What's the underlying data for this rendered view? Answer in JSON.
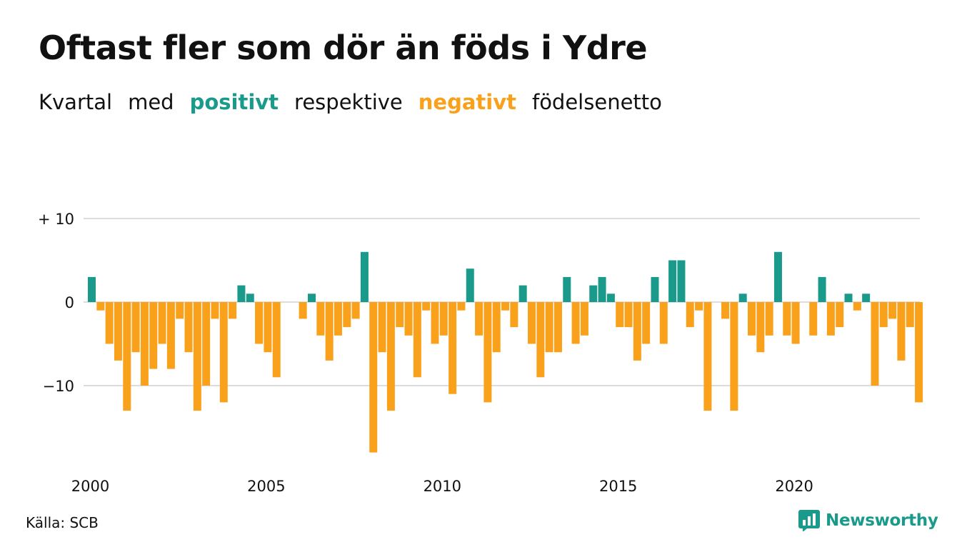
{
  "header": {
    "title": "Oftast fler som dör än föds i Ydre",
    "subtitle_words": [
      "Kvartal",
      "med"
    ],
    "positive_label": "positivt",
    "middle_word": "respektive",
    "negative_label": "negativt",
    "end_word": "födelsenetto"
  },
  "footer": {
    "source": "Källa: SCB",
    "brand": "Newsworthy",
    "brand_icon": "newsworthy-logo-icon"
  },
  "colors": {
    "positive": "#1a9a8a",
    "negative": "#f9a11b",
    "grid": "#dddddd",
    "brand": "#1a9a8a"
  },
  "chart_data": {
    "type": "bar",
    "title": "Oftast fler som dör än föds i Ydre",
    "subtitle": "Kvartal med positivt respektive negativt födelsenetto",
    "xlabel": "",
    "ylabel": "",
    "ylim": [
      -18,
      10
    ],
    "yticks": [
      {
        "value": 10,
        "label": "+ 10"
      },
      {
        "value": 0,
        "label": "0"
      },
      {
        "value": -10,
        "label": "−10"
      }
    ],
    "xticks": [
      {
        "value": 2000,
        "label": "2000"
      },
      {
        "value": 2005,
        "label": "2005"
      },
      {
        "value": 2010,
        "label": "2010"
      },
      {
        "value": 2015,
        "label": "2015"
      },
      {
        "value": 2020,
        "label": "2020"
      }
    ],
    "grid": true,
    "legend": "in subtitle",
    "start_year": 2000,
    "periods_per_year": 4,
    "values": [
      3,
      -1,
      -5,
      -7,
      -13,
      -6,
      -10,
      -8,
      -5,
      -8,
      -2,
      -6,
      -13,
      -10,
      -2,
      -12,
      -2,
      2,
      1,
      -5,
      -6,
      -9,
      0,
      0,
      -2,
      1,
      -4,
      -7,
      -4,
      -3,
      -2,
      6,
      -18,
      -6,
      -13,
      -3,
      -4,
      -9,
      -1,
      -5,
      -4,
      -11,
      -1,
      4,
      -4,
      -12,
      -6,
      -1,
      -3,
      2,
      -5,
      -9,
      -6,
      -6,
      3,
      -5,
      -4,
      2,
      3,
      1,
      -3,
      -3,
      -7,
      -5,
      3,
      -5,
      5,
      5,
      -3,
      -1,
      -13,
      0,
      -2,
      -13,
      1,
      -4,
      -6,
      -4,
      6,
      -4,
      -5,
      0,
      -4,
      3,
      -4,
      -3,
      1,
      -1,
      1,
      -10,
      -3,
      -2,
      -7,
      -3,
      -12
    ]
  }
}
